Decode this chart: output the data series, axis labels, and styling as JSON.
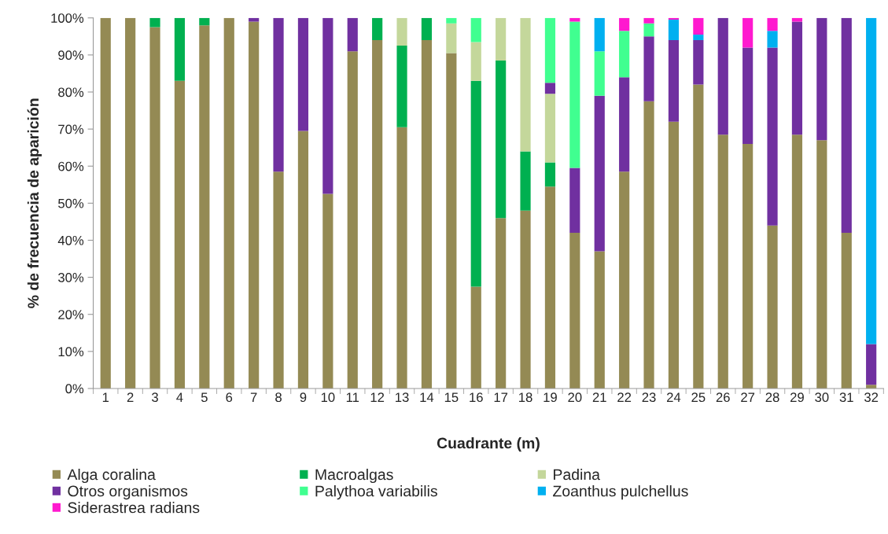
{
  "chart_data": {
    "type": "bar",
    "stacked": true,
    "xlabel": "Cuadrante (m)",
    "ylabel": "% de frecuencia de aparición",
    "categories": [
      "1",
      "2",
      "3",
      "4",
      "5",
      "6",
      "7",
      "8",
      "9",
      "10",
      "11",
      "12",
      "13",
      "14",
      "15",
      "16",
      "17",
      "18",
      "19",
      "20",
      "21",
      "22",
      "23",
      "24",
      "25",
      "26",
      "27",
      "28",
      "29",
      "30",
      "31",
      "32"
    ],
    "series": [
      {
        "name": "Alga coralina",
        "color": "#948a54",
        "values": [
          100,
          100,
          97.5,
          83,
          98,
          100,
          99,
          58.5,
          69.5,
          52.5,
          91,
          94,
          70.5,
          94,
          90.5,
          27.5,
          46,
          48,
          54.5,
          42,
          37,
          58.5,
          77.5,
          72,
          82,
          68.5,
          66,
          44,
          68.5,
          67,
          42,
          1
        ]
      },
      {
        "name": "Macroalgas",
        "color": "#00b050",
        "values": [
          0,
          0,
          2.5,
          17,
          2,
          0,
          0,
          0,
          0,
          0,
          0,
          6,
          22,
          6,
          0,
          55.5,
          42.5,
          16,
          6.5,
          0,
          0,
          0,
          0,
          0,
          0,
          0,
          0,
          0,
          0,
          0,
          0,
          0
        ]
      },
      {
        "name": "Padina",
        "color": "#c4d79b",
        "values": [
          0,
          0,
          0,
          0,
          0,
          0,
          0,
          0,
          0,
          0,
          0,
          0,
          7.5,
          0,
          8,
          10.5,
          11.5,
          36,
          18.5,
          0,
          0,
          0,
          0,
          0,
          0,
          0,
          0,
          0,
          0,
          0,
          0,
          0
        ]
      },
      {
        "name": "Otros organismos",
        "color": "#7030a0",
        "values": [
          0,
          0,
          0,
          0,
          0,
          0,
          1,
          41.5,
          30.5,
          47.5,
          9,
          0,
          0,
          0,
          0,
          0,
          0,
          0,
          3,
          17.5,
          42,
          25.5,
          17.5,
          22,
          12,
          31.5,
          26,
          48,
          30.5,
          33,
          58,
          11
        ]
      },
      {
        "name": "Palythoa variabilis",
        "color": "#40ff90",
        "values": [
          0,
          0,
          0,
          0,
          0,
          0,
          0,
          0,
          0,
          0,
          0,
          0,
          0,
          0,
          1.5,
          6.5,
          0,
          0,
          17.5,
          39.5,
          12,
          12.5,
          3.5,
          0,
          0,
          0,
          0,
          0,
          0,
          0,
          0,
          0
        ]
      },
      {
        "name": "Zoanthus pulchellus",
        "color": "#00b0f0",
        "values": [
          0,
          0,
          0,
          0,
          0,
          0,
          0,
          0,
          0,
          0,
          0,
          0,
          0,
          0,
          0,
          0,
          0,
          0,
          0,
          0,
          9,
          0,
          0,
          5.5,
          1.5,
          0,
          0,
          4.5,
          0,
          0,
          0,
          88
        ]
      },
      {
        "name": "Siderastrea radians",
        "color": "#ff19cf",
        "values": [
          0,
          0,
          0,
          0,
          0,
          0,
          0,
          0,
          0,
          0,
          0,
          0,
          0,
          0,
          0,
          0,
          0,
          0,
          0,
          1,
          0,
          3.5,
          1.5,
          0.5,
          4.5,
          0,
          8,
          3.5,
          1,
          0,
          0,
          0
        ]
      }
    ],
    "ylim": [
      0,
      100
    ],
    "yticks": [
      {
        "value": 0,
        "label": "0%"
      },
      {
        "value": 10,
        "label": "10%"
      },
      {
        "value": 20,
        "label": "20%"
      },
      {
        "value": 30,
        "label": "30%"
      },
      {
        "value": 40,
        "label": "40%"
      },
      {
        "value": 50,
        "label": "50%"
      },
      {
        "value": 60,
        "label": "60%"
      },
      {
        "value": 70,
        "label": "70%"
      },
      {
        "value": 80,
        "label": "80%"
      },
      {
        "value": 90,
        "label": "90%"
      },
      {
        "value": 100,
        "label": "100%"
      }
    ],
    "grid": false,
    "legend": "bottom"
  }
}
